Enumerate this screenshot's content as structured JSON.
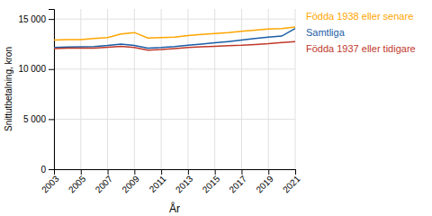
{
  "chart_data": {
    "type": "line",
    "xlabel": "År",
    "ylabel": "Snittutbetalning, kron",
    "x": [
      2003,
      2004,
      2005,
      2006,
      2007,
      2008,
      2009,
      2010,
      2011,
      2012,
      2013,
      2014,
      2015,
      2016,
      2017,
      2018,
      2019,
      2020,
      2021
    ],
    "series": [
      {
        "name": "Födda 1938 eller senare",
        "color": "#FFA500",
        "values": [
          12900,
          12950,
          12950,
          13050,
          13150,
          13500,
          13650,
          13100,
          13150,
          13200,
          13350,
          13450,
          13550,
          13650,
          13780,
          13880,
          14000,
          14050,
          14200
        ]
      },
      {
        "name": "Samtliga",
        "color": "#1B5EA6",
        "values": [
          12150,
          12200,
          12220,
          12250,
          12350,
          12500,
          12350,
          12100,
          12150,
          12250,
          12380,
          12500,
          12620,
          12750,
          12900,
          13050,
          13200,
          13300,
          14050
        ]
      },
      {
        "name": "Födda 1937 eller tidigare",
        "color": "#C0392B",
        "values": [
          12050,
          12090,
          12100,
          12100,
          12180,
          12280,
          12150,
          11880,
          11950,
          12050,
          12150,
          12220,
          12280,
          12330,
          12380,
          12460,
          12540,
          12650,
          12750
        ]
      }
    ],
    "xlim": [
      2003,
      2021
    ],
    "xticks": [
      2003,
      2005,
      2007,
      2009,
      2011,
      2013,
      2015,
      2017,
      2019,
      2021
    ],
    "ylim": [
      0,
      16000
    ],
    "yticks": [
      0,
      {
        "value": 5000,
        "label": "5 000"
      },
      {
        "value": 10000,
        "label": "10 000"
      },
      {
        "value": 15000,
        "label": "15 000"
      }
    ],
    "grid": true,
    "legend": "right"
  }
}
